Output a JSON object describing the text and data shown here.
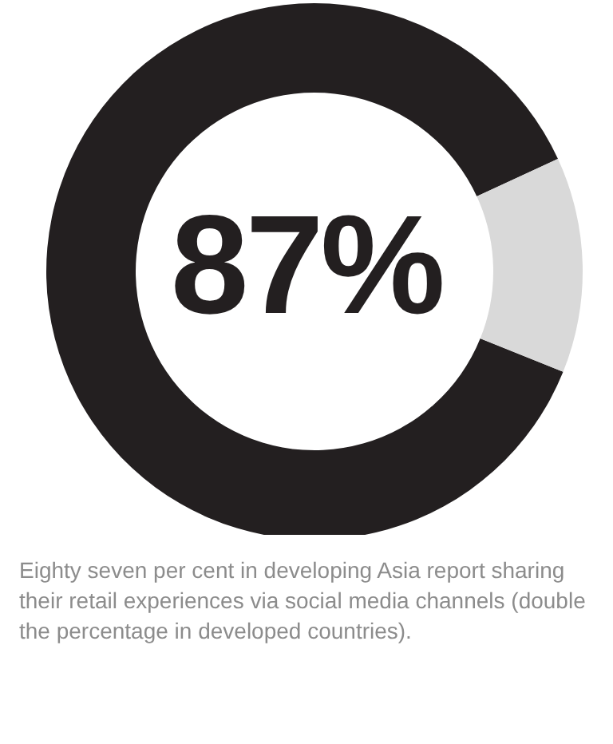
{
  "chart_data": {
    "type": "donut",
    "categories": [
      null,
      null
    ],
    "values": [
      87,
      13
    ],
    "colors": [
      "#231f20",
      "#d9d9d9"
    ],
    "value_labels": [
      "87%",
      null
    ],
    "annotations": [
      "Eighty seven per cent in developing Asia report sharing their retail experiences via social media channels (double the percentage in developed countries)."
    ]
  }
}
